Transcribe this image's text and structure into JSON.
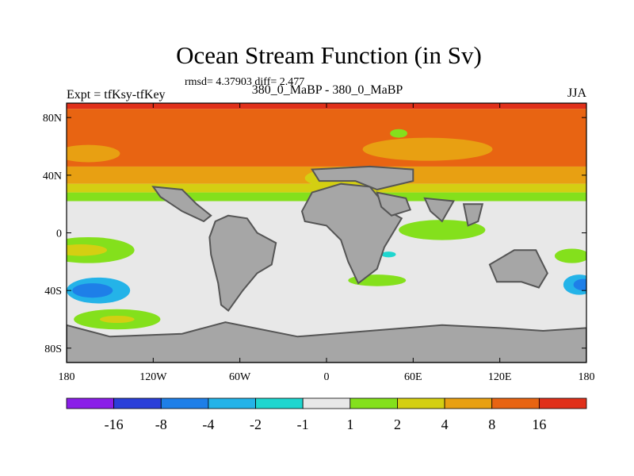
{
  "chart_data": {
    "type": "heatmap",
    "title": "Ocean Stream Function (in Sv)",
    "stats_text": "rmsd= 4.37903 diff= 2.477",
    "left_label": "Expt = tfKsy-tfKey",
    "center_label": "380_0_MaBP - 380_0_MaBP",
    "right_label": "JJA",
    "x_ticks": [
      "180",
      "120W",
      "60W",
      "0",
      "60E",
      "120E",
      "180"
    ],
    "y_ticks": [
      "80N",
      "40N",
      "0",
      "40S",
      "80S"
    ],
    "xlim": [
      -180,
      180
    ],
    "ylim": [
      -90,
      90
    ],
    "colorbar": {
      "labels": [
        "-16",
        "-8",
        "-4",
        "-2",
        "-1",
        "1",
        "2",
        "4",
        "8",
        "16"
      ],
      "colors": [
        "#8a1ee8",
        "#2b3fd9",
        "#1e7fe8",
        "#24b3e8",
        "#1fd6cf",
        "#e8e8e8",
        "#84e01c",
        "#d4cf12",
        "#e8a012",
        "#e86412",
        "#e0301a"
      ]
    },
    "bands": [
      {
        "lat_from": 90,
        "lat_to": 86,
        "color": "#e0301a"
      },
      {
        "lat_from": 86,
        "lat_to": 46,
        "color": "#e86412"
      },
      {
        "lat_from": 46,
        "lat_to": 34,
        "color": "#e8a012"
      },
      {
        "lat_from": 34,
        "lat_to": 28,
        "color": "#d4cf12"
      },
      {
        "lat_from": 28,
        "lat_to": 22,
        "color": "#84e01c"
      }
    ],
    "patches": [
      {
        "name": "cool-pocket-natlantic",
        "lon": -165,
        "lat": 55,
        "rx": 22,
        "ry": 6,
        "color": "#e8a012"
      },
      {
        "name": "yellow-tongue-npacific",
        "lon": 20,
        "lat": 38,
        "rx": 35,
        "ry": 8,
        "color": "#d4cf12"
      },
      {
        "name": "warm-patch-eurasia",
        "lon": 70,
        "lat": 58,
        "rx": 45,
        "ry": 8,
        "color": "#e8a012"
      },
      {
        "name": "green-spot-arctic",
        "lon": 50,
        "lat": 69,
        "rx": 6,
        "ry": 3,
        "color": "#84e01c"
      },
      {
        "name": "equatorial-green-west",
        "lon": -165,
        "lat": -12,
        "rx": 32,
        "ry": 9,
        "color": "#84e01c"
      },
      {
        "name": "equatorial-yellow-west",
        "lon": -170,
        "lat": -12,
        "rx": 18,
        "ry": 4,
        "color": "#d4cf12"
      },
      {
        "name": "equatorial-green-east",
        "lon": 80,
        "lat": 2,
        "rx": 30,
        "ry": 7,
        "color": "#84e01c"
      },
      {
        "name": "green-indian",
        "lon": 35,
        "lat": -33,
        "rx": 20,
        "ry": 4,
        "color": "#84e01c"
      },
      {
        "name": "cyan-dot-indian",
        "lon": 43,
        "lat": -15,
        "rx": 5,
        "ry": 2,
        "color": "#1fd6cf"
      },
      {
        "name": "green-south-pacific",
        "lon": -145,
        "lat": -60,
        "rx": 30,
        "ry": 7,
        "color": "#84e01c"
      },
      {
        "name": "yellow-south-pacific",
        "lon": -145,
        "lat": -60,
        "rx": 12,
        "ry": 2.5,
        "color": "#d4cf12"
      },
      {
        "name": "cyan-ring-south-pacific",
        "lon": -158,
        "lat": -40,
        "rx": 22,
        "ry": 9,
        "color": "#24b3e8"
      },
      {
        "name": "blue-core-south-pacific",
        "lon": -162,
        "lat": -40,
        "rx": 14,
        "ry": 5,
        "color": "#1e7fe8"
      },
      {
        "name": "cyan-ring-east",
        "lon": 175,
        "lat": -36,
        "rx": 11,
        "ry": 7,
        "color": "#24b3e8"
      },
      {
        "name": "blue-core-east",
        "lon": 178,
        "lat": -36,
        "rx": 7,
        "ry": 4,
        "color": "#1e7fe8"
      },
      {
        "name": "green-east-pacific",
        "lon": 170,
        "lat": -16,
        "rx": 12,
        "ry": 5,
        "color": "#84e01c"
      }
    ],
    "land": [
      {
        "name": "land-south-america",
        "points": [
          [
            -68,
            12
          ],
          [
            -55,
            10
          ],
          [
            -48,
            0
          ],
          [
            -35,
            -7
          ],
          [
            -38,
            -22
          ],
          [
            -48,
            -28
          ],
          [
            -58,
            -40
          ],
          [
            -68,
            -54
          ],
          [
            -73,
            -50
          ],
          [
            -75,
            -35
          ],
          [
            -80,
            -15
          ],
          [
            -81,
            -3
          ],
          [
            -77,
            8
          ]
        ]
      },
      {
        "name": "land-north-america-south",
        "points": [
          [
            -120,
            32
          ],
          [
            -100,
            30
          ],
          [
            -90,
            20
          ],
          [
            -80,
            12
          ],
          [
            -85,
            8
          ],
          [
            -100,
            15
          ],
          [
            -115,
            25
          ]
        ]
      },
      {
        "name": "land-africa",
        "points": [
          [
            -17,
            15
          ],
          [
            -10,
            28
          ],
          [
            10,
            34
          ],
          [
            30,
            32
          ],
          [
            45,
            14
          ],
          [
            52,
            10
          ],
          [
            40,
            -10
          ],
          [
            35,
            -25
          ],
          [
            22,
            -35
          ],
          [
            15,
            -20
          ],
          [
            10,
            -5
          ],
          [
            0,
            5
          ],
          [
            -15,
            8
          ]
        ]
      },
      {
        "name": "land-eurasia-block",
        "points": [
          [
            -10,
            44
          ],
          [
            30,
            46
          ],
          [
            60,
            44
          ],
          [
            60,
            36
          ],
          [
            35,
            30
          ],
          [
            20,
            36
          ],
          [
            -5,
            36
          ]
        ]
      },
      {
        "name": "land-arabia",
        "points": [
          [
            35,
            28
          ],
          [
            55,
            24
          ],
          [
            58,
            16
          ],
          [
            45,
            12
          ],
          [
            38,
            18
          ]
        ]
      },
      {
        "name": "land-india",
        "points": [
          [
            68,
            24
          ],
          [
            88,
            22
          ],
          [
            80,
            8
          ],
          [
            72,
            15
          ]
        ]
      },
      {
        "name": "land-se-asia",
        "points": [
          [
            95,
            20
          ],
          [
            108,
            20
          ],
          [
            105,
            8
          ],
          [
            98,
            5
          ]
        ]
      },
      {
        "name": "land-australia",
        "points": [
          [
            113,
            -22
          ],
          [
            130,
            -12
          ],
          [
            145,
            -12
          ],
          [
            153,
            -28
          ],
          [
            147,
            -38
          ],
          [
            135,
            -34
          ],
          [
            118,
            -34
          ]
        ]
      },
      {
        "name": "land-antarctica",
        "points": [
          [
            -180,
            -64
          ],
          [
            -150,
            -72
          ],
          [
            -100,
            -70
          ],
          [
            -70,
            -62
          ],
          [
            -55,
            -65
          ],
          [
            -20,
            -72
          ],
          [
            30,
            -68
          ],
          [
            80,
            -64
          ],
          [
            120,
            -66
          ],
          [
            150,
            -68
          ],
          [
            180,
            -66
          ],
          [
            180,
            -90
          ],
          [
            -180,
            -90
          ]
        ]
      }
    ]
  }
}
